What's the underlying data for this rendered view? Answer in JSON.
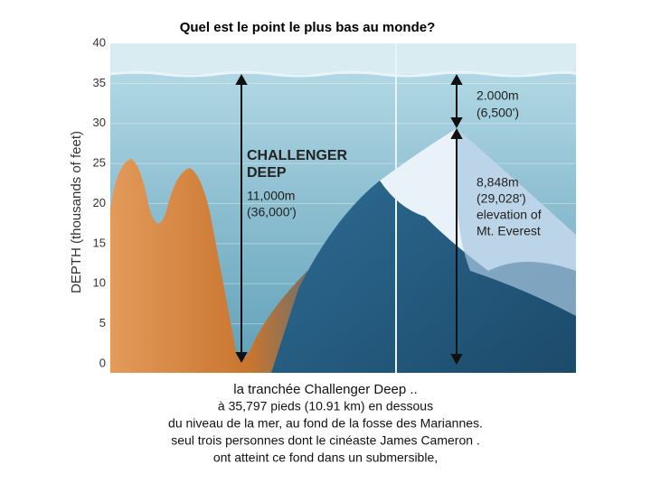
{
  "title": "Quel est le point le plus bas au monde?",
  "figure": {
    "axis_label": "DEPTH (thousands of feet)",
    "ticks": [
      0,
      5,
      10,
      15,
      20,
      25,
      30,
      35,
      40
    ],
    "trench_label": [
      "CHALLENGER",
      "DEEP",
      "11,000m",
      "(36,000')"
    ],
    "gap_label": [
      "2.000m",
      "(6,500')"
    ],
    "everest_label": [
      "8,848m",
      "(29,028')",
      "elevation of",
      "Mt. Everest"
    ]
  },
  "caption": [
    "la tranchée Challenger Deep ..",
    "à 35,797 pieds (10.91 km) en dessous",
    "du niveau de la mer, au fond de la fosse des Mariannes.",
    "seul  trois personnes dont le cinéaste James Cameron .",
    "ont atteint ce fond dans un submersible,"
  ]
}
